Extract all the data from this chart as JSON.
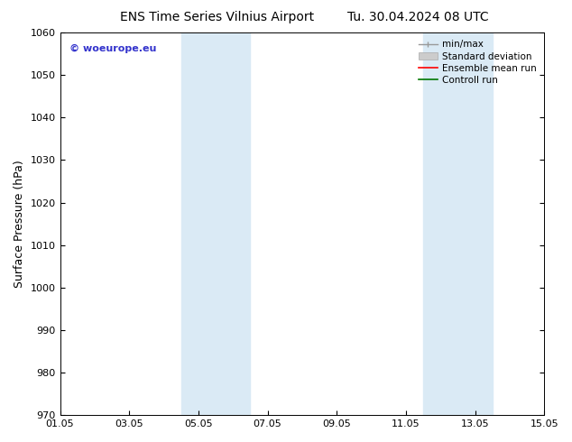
{
  "title_left": "ENS Time Series Vilnius Airport",
  "title_right": "Tu. 30.04.2024 08 UTC",
  "ylabel": "Surface Pressure (hPa)",
  "ylim": [
    970,
    1060
  ],
  "yticks": [
    970,
    980,
    990,
    1000,
    1010,
    1020,
    1030,
    1040,
    1050,
    1060
  ],
  "xlim_days": [
    0,
    14
  ],
  "xtick_labels": [
    "01.05",
    "03.05",
    "05.05",
    "07.05",
    "09.05",
    "11.05",
    "13.05",
    "15.05"
  ],
  "xtick_positions": [
    0,
    2,
    4,
    6,
    8,
    10,
    12,
    14
  ],
  "shaded_bands": [
    {
      "xmin": 3.5,
      "xmax": 4.5,
      "color": "#daeaf6"
    },
    {
      "xmin": 4.5,
      "xmax": 5.0,
      "color": "#cce0f5"
    },
    {
      "xmin": 5.0,
      "xmax": 6.0,
      "color": "#daeaf6"
    },
    {
      "xmin": 10.5,
      "xmax": 11.5,
      "color": "#daeaf6"
    },
    {
      "xmin": 11.5,
      "xmax": 12.0,
      "color": "#cce0f5"
    },
    {
      "xmin": 12.0,
      "xmax": 13.0,
      "color": "#daeaf6"
    }
  ],
  "copyright_text": "© woeurope.eu",
  "copyright_color": "#3333cc",
  "background_color": "#ffffff",
  "title_fontsize": 10,
  "axis_label_fontsize": 9,
  "tick_fontsize": 8,
  "legend_fontsize": 7.5
}
